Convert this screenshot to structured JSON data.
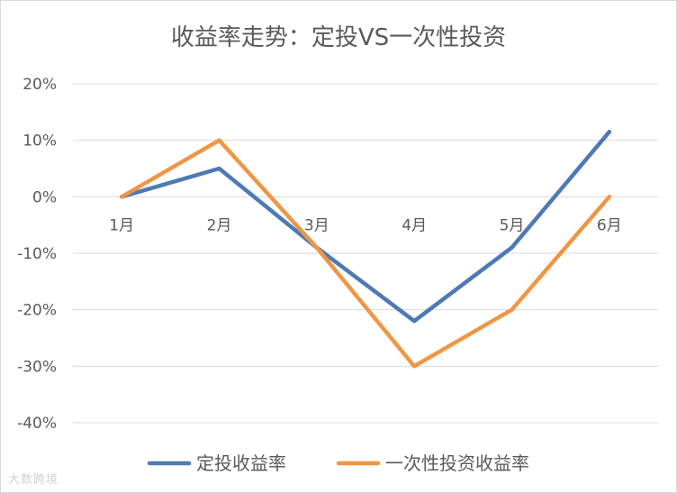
{
  "chart_data": {
    "type": "line",
    "title": "收益率走势：定投VS一次性投资",
    "categories": [
      "1月",
      "2月",
      "3月",
      "4月",
      "5月",
      "6月"
    ],
    "yticks": [
      "20%",
      "10%",
      "0%",
      "-10%",
      "-20%",
      "-30%",
      "-40%"
    ],
    "ylim": [
      -40,
      20
    ],
    "grid": true,
    "legend_position": "bottom",
    "series": [
      {
        "name": "定投收益率",
        "color": "#4e79b4",
        "values": [
          0,
          5,
          -9,
          -22,
          -9,
          11.5
        ]
      },
      {
        "name": "一次性投资收益率",
        "color": "#ef9645",
        "values": [
          0,
          10,
          -9,
          -30,
          -20,
          0
        ]
      }
    ]
  },
  "watermark": "大数跨境"
}
